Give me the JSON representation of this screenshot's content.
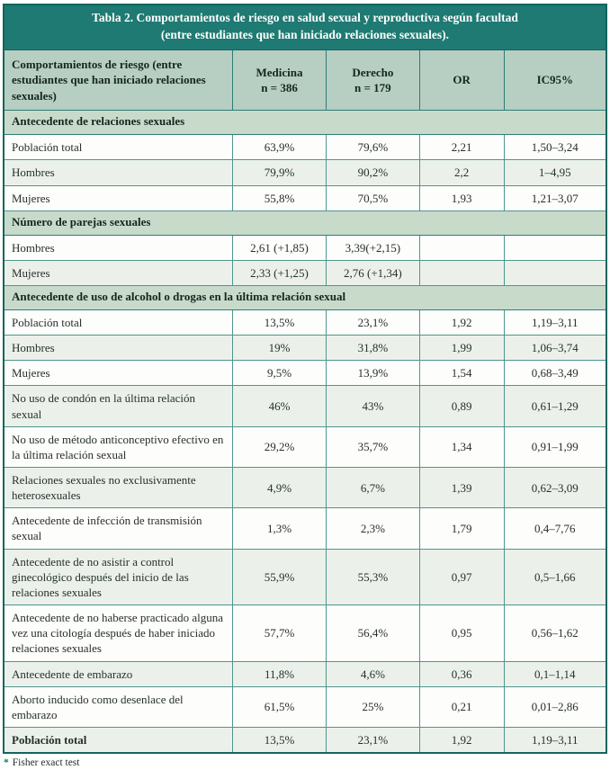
{
  "title": {
    "line1": "Tabla 2. Comportamientos de riesgo en salud sexual y reproductiva según facultad",
    "line2": "(entre estudiantes que han iniciado relaciones sexuales)."
  },
  "columns": {
    "behavior": "Comportamientos de riesgo (entre estudiantes que han iniciado relaciones sexuales)",
    "medicina": {
      "name": "Medicina",
      "sub": "n = 386"
    },
    "derecho": {
      "name": "Derecho",
      "sub": "n = 179"
    },
    "or": "OR",
    "ic": "IC95%"
  },
  "rows": [
    {
      "type": "section",
      "label": "Antecedente de relaciones sexuales"
    },
    {
      "type": "data",
      "label": "Población total",
      "medicina": "63,9%",
      "derecho": "79,6%",
      "or": "2,21",
      "ic": "1,50–3,24"
    },
    {
      "type": "data",
      "label": "Hombres",
      "medicina": "79,9%",
      "derecho": "90,2%",
      "or": "2,2",
      "ic": "1–4,95"
    },
    {
      "type": "data",
      "label": "Mujeres",
      "medicina": "55,8%",
      "derecho": "70,5%",
      "or": "1,93",
      "ic": "1,21–3,07"
    },
    {
      "type": "section",
      "label": "Número de parejas sexuales"
    },
    {
      "type": "data",
      "label": "Hombres",
      "medicina": "2,61 (+1,85)",
      "derecho": "3,39(+2,15)",
      "or": "",
      "ic": ""
    },
    {
      "type": "data",
      "label": "Mujeres",
      "medicina": "2,33 (+1,25)",
      "derecho": "2,76 (+1,34)",
      "or": "",
      "ic": ""
    },
    {
      "type": "section",
      "label": "Antecedente de uso de alcohol o drogas en la última relación sexual"
    },
    {
      "type": "data",
      "label": "Población total",
      "medicina": "13,5%",
      "derecho": "23,1%",
      "or": "1,92",
      "ic": "1,19–3,11"
    },
    {
      "type": "data",
      "label": "Hombres",
      "medicina": "19%",
      "derecho": "31,8%",
      "or": "1,99",
      "ic": "1,06–3,74"
    },
    {
      "type": "data",
      "label": "Mujeres",
      "medicina": "9,5%",
      "derecho": "13,9%",
      "or": "1,54",
      "ic": "0,68–3,49"
    },
    {
      "type": "data",
      "label": "No uso de condón en la última relación sexual",
      "medicina": "46%",
      "derecho": "43%",
      "or": "0,89",
      "ic": "0,61–1,29"
    },
    {
      "type": "data",
      "label": "No uso de método anticonceptivo efectivo en la última relación sexual",
      "medicina": "29,2%",
      "derecho": "35,7%",
      "or": "1,34",
      "ic": "0,91–1,99"
    },
    {
      "type": "data",
      "label": "Relaciones sexuales no exclusivamente heterosexuales",
      "medicina": "4,9%",
      "derecho": "6,7%",
      "or": "1,39",
      "ic": "0,62–3,09"
    },
    {
      "type": "data",
      "label": "Antecedente de infección de transmisión sexual",
      "medicina": "1,3%",
      "derecho": "2,3%",
      "or": "1,79",
      "ic": "0,4–7,76"
    },
    {
      "type": "data",
      "label": "Antecedente de no asistir a control ginecológico después del inicio de las relaciones sexuales",
      "medicina": "55,9%",
      "derecho": "55,3%",
      "or": "0,97",
      "ic": "0,5–1,66"
    },
    {
      "type": "data",
      "label": "Antecedente de no haberse practicado alguna vez una citología después de haber iniciado relaciones sexuales",
      "medicina": "57,7%",
      "derecho": "56,4%",
      "or": "0,95",
      "ic": "0,56–1,62"
    },
    {
      "type": "data",
      "label": "Antecedente de embarazo",
      "medicina": "11,8%",
      "derecho": "4,6%",
      "or": "0,36",
      "ic": "0,1–1,14"
    },
    {
      "type": "data",
      "label": "Aborto inducido como desenlace del embarazo",
      "medicina": "61,5%",
      "derecho": "25%",
      "or": "0,21",
      "ic": "0,01–2,86"
    },
    {
      "type": "data",
      "emphasis": true,
      "label": "Población total",
      "medicina": "13,5%",
      "derecho": "23,1%",
      "or": "1,92",
      "ic": "1,19–3,11"
    }
  ],
  "footnote": {
    "marker": "*",
    "text": "Fisher exact test"
  },
  "colors": {
    "title_bar": "#1e7a72",
    "header_row": "#b7cec3",
    "section_row": "#c8dbcb",
    "alt_row": "#ebf1ea",
    "grid_line": "#4f968a",
    "outer_border": "#14645e"
  }
}
